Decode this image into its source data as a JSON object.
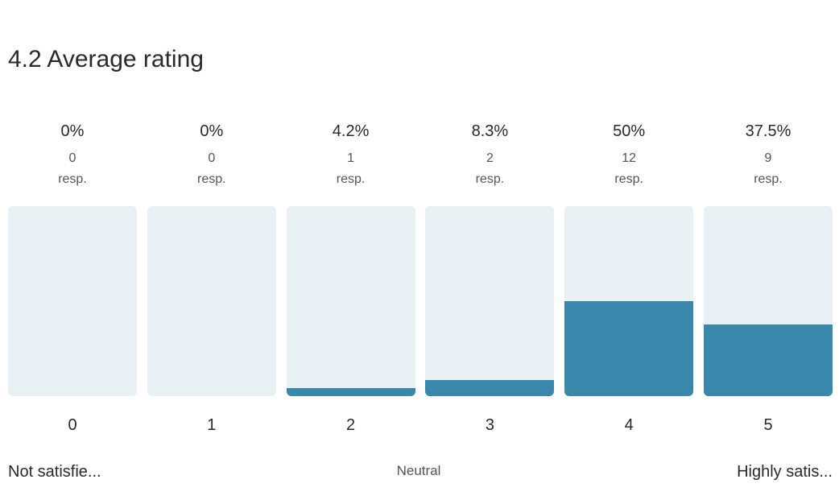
{
  "title": "4.2 Average rating",
  "accent_color": "#3a87ac",
  "track_color": "#e9f1f5",
  "chart_data": {
    "type": "bar",
    "title": "4.2 Average rating",
    "categories": [
      "0",
      "1",
      "2",
      "3",
      "4",
      "5"
    ],
    "values": [
      0,
      0,
      4.2,
      8.3,
      50,
      37.5
    ],
    "percent_labels": [
      "0%",
      "0%",
      "4.2%",
      "8.3%",
      "50%",
      "37.5%"
    ],
    "counts": [
      "0",
      "0",
      "1",
      "2",
      "12",
      "9"
    ],
    "count_unit": "resp.",
    "ylim": [
      0,
      100
    ],
    "grid": false
  },
  "scale_labels": {
    "low": "Not satisfie...",
    "mid": "Neutral",
    "high": "Highly satis..."
  }
}
